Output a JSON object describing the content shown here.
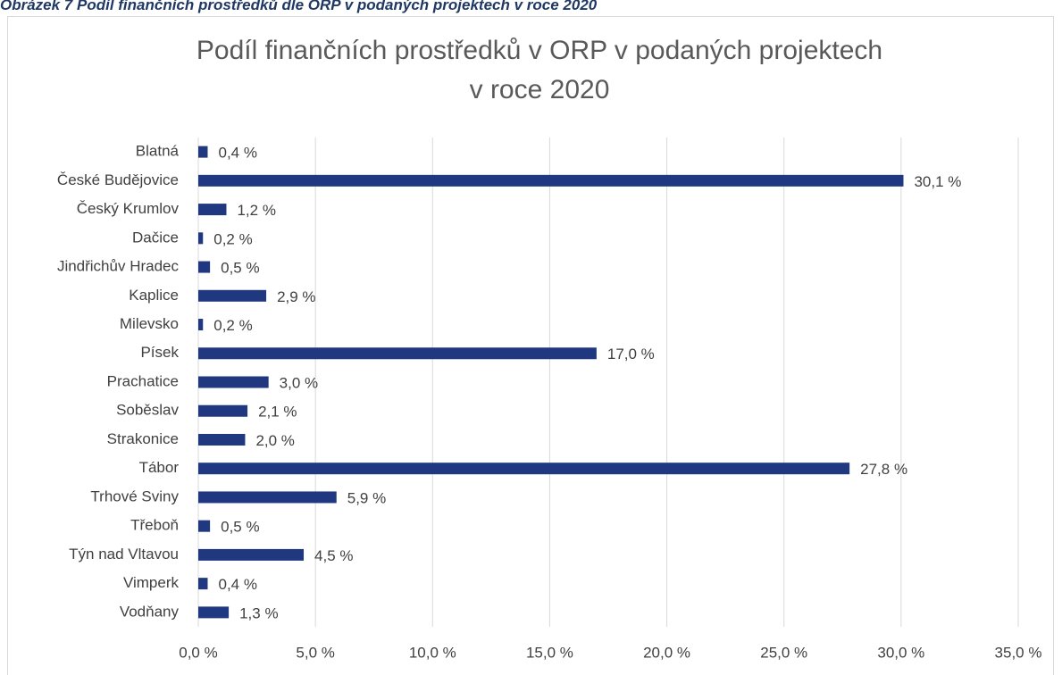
{
  "caption": "Obrázek 7 Podíl finančních prostředků dle ORP v podaných projektech v roce 2020",
  "chart_data": {
    "type": "barh",
    "title": [
      "Podíl finančních prostředků v ORP v podaných projektech",
      "v roce 2020"
    ],
    "categories": [
      "Blatná",
      "České Budějovice",
      "Český Krumlov",
      "Dačice",
      "Jindřichův Hradec",
      "Kaplice",
      "Milevsko",
      "Písek",
      "Prachatice",
      "Soběslav",
      "Strakonice",
      "Tábor",
      "Trhové Sviny",
      "Třeboň",
      "Týn nad Vltavou",
      "Vimperk",
      "Vodňany"
    ],
    "values": [
      0.4,
      30.1,
      1.2,
      0.2,
      0.5,
      2.9,
      0.2,
      17.0,
      3.0,
      2.1,
      2.0,
      27.8,
      5.9,
      0.5,
      4.5,
      0.4,
      1.3
    ],
    "value_labels": [
      "0,4 %",
      "30,1 %",
      "1,2 %",
      "0,2 %",
      "0,5 %",
      "2,9 %",
      "0,2 %",
      "17,0 %",
      "3,0 %",
      "2,1 %",
      "2,0 %",
      "27,8 %",
      "5,9 %",
      "0,5 %",
      "4,5 %",
      "0,4 %",
      "1,3 %"
    ],
    "color": "#203880",
    "xlim": [
      0,
      35
    ],
    "xticks": [
      {
        "value": 0,
        "label": "0,0 %"
      },
      {
        "value": 5,
        "label": "5,0 %"
      },
      {
        "value": 10,
        "label": "10,0 %"
      },
      {
        "value": 15,
        "label": "15,0 %"
      },
      {
        "value": 20,
        "label": "20,0 %"
      },
      {
        "value": 25,
        "label": "25,0 %"
      },
      {
        "value": 30,
        "label": "30,0 %"
      },
      {
        "value": 35,
        "label": "35,0 %"
      }
    ],
    "grid": true
  }
}
